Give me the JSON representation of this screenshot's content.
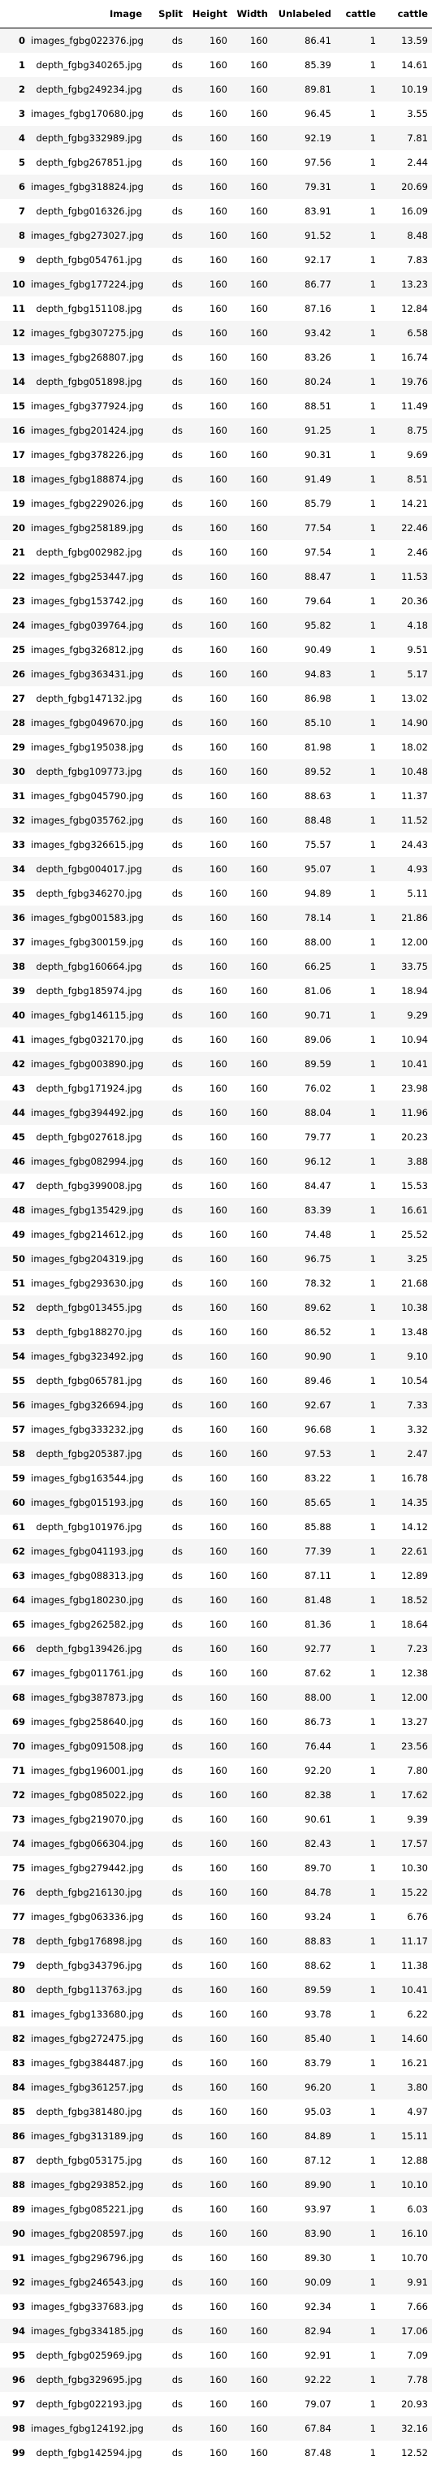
{
  "table": {
    "columns": [
      "",
      "Image",
      "Split",
      "Height",
      "Width",
      "Unlabeled",
      "cattle",
      "cattle"
    ],
    "rows": [
      [
        "0",
        "images_fgbg022376.jpg",
        "ds",
        "160",
        "160",
        "86.41",
        "1",
        "13.59"
      ],
      [
        "1",
        "depth_fgbg340265.jpg",
        "ds",
        "160",
        "160",
        "85.39",
        "1",
        "14.61"
      ],
      [
        "2",
        "depth_fgbg249234.jpg",
        "ds",
        "160",
        "160",
        "89.81",
        "1",
        "10.19"
      ],
      [
        "3",
        "images_fgbg170680.jpg",
        "ds",
        "160",
        "160",
        "96.45",
        "1",
        "3.55"
      ],
      [
        "4",
        "depth_fgbg332989.jpg",
        "ds",
        "160",
        "160",
        "92.19",
        "1",
        "7.81"
      ],
      [
        "5",
        "depth_fgbg267851.jpg",
        "ds",
        "160",
        "160",
        "97.56",
        "1",
        "2.44"
      ],
      [
        "6",
        "images_fgbg318824.jpg",
        "ds",
        "160",
        "160",
        "79.31",
        "1",
        "20.69"
      ],
      [
        "7",
        "depth_fgbg016326.jpg",
        "ds",
        "160",
        "160",
        "83.91",
        "1",
        "16.09"
      ],
      [
        "8",
        "images_fgbg273027.jpg",
        "ds",
        "160",
        "160",
        "91.52",
        "1",
        "8.48"
      ],
      [
        "9",
        "depth_fgbg054761.jpg",
        "ds",
        "160",
        "160",
        "92.17",
        "1",
        "7.83"
      ],
      [
        "10",
        "images_fgbg177224.jpg",
        "ds",
        "160",
        "160",
        "86.77",
        "1",
        "13.23"
      ],
      [
        "11",
        "depth_fgbg151108.jpg",
        "ds",
        "160",
        "160",
        "87.16",
        "1",
        "12.84"
      ],
      [
        "12",
        "images_fgbg307275.jpg",
        "ds",
        "160",
        "160",
        "93.42",
        "1",
        "6.58"
      ],
      [
        "13",
        "images_fgbg268807.jpg",
        "ds",
        "160",
        "160",
        "83.26",
        "1",
        "16.74"
      ],
      [
        "14",
        "depth_fgbg051898.jpg",
        "ds",
        "160",
        "160",
        "80.24",
        "1",
        "19.76"
      ],
      [
        "15",
        "images_fgbg377924.jpg",
        "ds",
        "160",
        "160",
        "88.51",
        "1",
        "11.49"
      ],
      [
        "16",
        "images_fgbg201424.jpg",
        "ds",
        "160",
        "160",
        "91.25",
        "1",
        "8.75"
      ],
      [
        "17",
        "images_fgbg378226.jpg",
        "ds",
        "160",
        "160",
        "90.31",
        "1",
        "9.69"
      ],
      [
        "18",
        "images_fgbg188874.jpg",
        "ds",
        "160",
        "160",
        "91.49",
        "1",
        "8.51"
      ],
      [
        "19",
        "images_fgbg229026.jpg",
        "ds",
        "160",
        "160",
        "85.79",
        "1",
        "14.21"
      ],
      [
        "20",
        "images_fgbg258189.jpg",
        "ds",
        "160",
        "160",
        "77.54",
        "1",
        "22.46"
      ],
      [
        "21",
        "depth_fgbg002982.jpg",
        "ds",
        "160",
        "160",
        "97.54",
        "1",
        "2.46"
      ],
      [
        "22",
        "images_fgbg253447.jpg",
        "ds",
        "160",
        "160",
        "88.47",
        "1",
        "11.53"
      ],
      [
        "23",
        "images_fgbg153742.jpg",
        "ds",
        "160",
        "160",
        "79.64",
        "1",
        "20.36"
      ],
      [
        "24",
        "images_fgbg039764.jpg",
        "ds",
        "160",
        "160",
        "95.82",
        "1",
        "4.18"
      ],
      [
        "25",
        "images_fgbg326812.jpg",
        "ds",
        "160",
        "160",
        "90.49",
        "1",
        "9.51"
      ],
      [
        "26",
        "images_fgbg363431.jpg",
        "ds",
        "160",
        "160",
        "94.83",
        "1",
        "5.17"
      ],
      [
        "27",
        "depth_fgbg147132.jpg",
        "ds",
        "160",
        "160",
        "86.98",
        "1",
        "13.02"
      ],
      [
        "28",
        "images_fgbg049670.jpg",
        "ds",
        "160",
        "160",
        "85.10",
        "1",
        "14.90"
      ],
      [
        "29",
        "images_fgbg195038.jpg",
        "ds",
        "160",
        "160",
        "81.98",
        "1",
        "18.02"
      ],
      [
        "30",
        "depth_fgbg109773.jpg",
        "ds",
        "160",
        "160",
        "89.52",
        "1",
        "10.48"
      ],
      [
        "31",
        "images_fgbg045790.jpg",
        "ds",
        "160",
        "160",
        "88.63",
        "1",
        "11.37"
      ],
      [
        "32",
        "images_fgbg035762.jpg",
        "ds",
        "160",
        "160",
        "88.48",
        "1",
        "11.52"
      ],
      [
        "33",
        "images_fgbg326615.jpg",
        "ds",
        "160",
        "160",
        "75.57",
        "1",
        "24.43"
      ],
      [
        "34",
        "depth_fgbg004017.jpg",
        "ds",
        "160",
        "160",
        "95.07",
        "1",
        "4.93"
      ],
      [
        "35",
        "depth_fgbg346270.jpg",
        "ds",
        "160",
        "160",
        "94.89",
        "1",
        "5.11"
      ],
      [
        "36",
        "images_fgbg001583.jpg",
        "ds",
        "160",
        "160",
        "78.14",
        "1",
        "21.86"
      ],
      [
        "37",
        "images_fgbg300159.jpg",
        "ds",
        "160",
        "160",
        "88.00",
        "1",
        "12.00"
      ],
      [
        "38",
        "depth_fgbg160664.jpg",
        "ds",
        "160",
        "160",
        "66.25",
        "1",
        "33.75"
      ],
      [
        "39",
        "depth_fgbg185974.jpg",
        "ds",
        "160",
        "160",
        "81.06",
        "1",
        "18.94"
      ],
      [
        "40",
        "images_fgbg146115.jpg",
        "ds",
        "160",
        "160",
        "90.71",
        "1",
        "9.29"
      ],
      [
        "41",
        "images_fgbg032170.jpg",
        "ds",
        "160",
        "160",
        "89.06",
        "1",
        "10.94"
      ],
      [
        "42",
        "images_fgbg003890.jpg",
        "ds",
        "160",
        "160",
        "89.59",
        "1",
        "10.41"
      ],
      [
        "43",
        "depth_fgbg171924.jpg",
        "ds",
        "160",
        "160",
        "76.02",
        "1",
        "23.98"
      ],
      [
        "44",
        "images_fgbg394492.jpg",
        "ds",
        "160",
        "160",
        "88.04",
        "1",
        "11.96"
      ],
      [
        "45",
        "depth_fgbg027618.jpg",
        "ds",
        "160",
        "160",
        "79.77",
        "1",
        "20.23"
      ],
      [
        "46",
        "images_fgbg082994.jpg",
        "ds",
        "160",
        "160",
        "96.12",
        "1",
        "3.88"
      ],
      [
        "47",
        "depth_fgbg399008.jpg",
        "ds",
        "160",
        "160",
        "84.47",
        "1",
        "15.53"
      ],
      [
        "48",
        "images_fgbg135429.jpg",
        "ds",
        "160",
        "160",
        "83.39",
        "1",
        "16.61"
      ],
      [
        "49",
        "images_fgbg214612.jpg",
        "ds",
        "160",
        "160",
        "74.48",
        "1",
        "25.52"
      ],
      [
        "50",
        "images_fgbg204319.jpg",
        "ds",
        "160",
        "160",
        "96.75",
        "1",
        "3.25"
      ],
      [
        "51",
        "images_fgbg293630.jpg",
        "ds",
        "160",
        "160",
        "78.32",
        "1",
        "21.68"
      ],
      [
        "52",
        "depth_fgbg013455.jpg",
        "ds",
        "160",
        "160",
        "89.62",
        "1",
        "10.38"
      ],
      [
        "53",
        "depth_fgbg188270.jpg",
        "ds",
        "160",
        "160",
        "86.52",
        "1",
        "13.48"
      ],
      [
        "54",
        "images_fgbg323492.jpg",
        "ds",
        "160",
        "160",
        "90.90",
        "1",
        "9.10"
      ],
      [
        "55",
        "depth_fgbg065781.jpg",
        "ds",
        "160",
        "160",
        "89.46",
        "1",
        "10.54"
      ],
      [
        "56",
        "images_fgbg326694.jpg",
        "ds",
        "160",
        "160",
        "92.67",
        "1",
        "7.33"
      ],
      [
        "57",
        "images_fgbg333232.jpg",
        "ds",
        "160",
        "160",
        "96.68",
        "1",
        "3.32"
      ],
      [
        "58",
        "depth_fgbg205387.jpg",
        "ds",
        "160",
        "160",
        "97.53",
        "1",
        "2.47"
      ],
      [
        "59",
        "images_fgbg163544.jpg",
        "ds",
        "160",
        "160",
        "83.22",
        "1",
        "16.78"
      ],
      [
        "60",
        "images_fgbg015193.jpg",
        "ds",
        "160",
        "160",
        "85.65",
        "1",
        "14.35"
      ],
      [
        "61",
        "depth_fgbg101976.jpg",
        "ds",
        "160",
        "160",
        "85.88",
        "1",
        "14.12"
      ],
      [
        "62",
        "images_fgbg041193.jpg",
        "ds",
        "160",
        "160",
        "77.39",
        "1",
        "22.61"
      ],
      [
        "63",
        "images_fgbg088313.jpg",
        "ds",
        "160",
        "160",
        "87.11",
        "1",
        "12.89"
      ],
      [
        "64",
        "images_fgbg180230.jpg",
        "ds",
        "160",
        "160",
        "81.48",
        "1",
        "18.52"
      ],
      [
        "65",
        "images_fgbg262582.jpg",
        "ds",
        "160",
        "160",
        "81.36",
        "1",
        "18.64"
      ],
      [
        "66",
        "depth_fgbg139426.jpg",
        "ds",
        "160",
        "160",
        "92.77",
        "1",
        "7.23"
      ],
      [
        "67",
        "images_fgbg011761.jpg",
        "ds",
        "160",
        "160",
        "87.62",
        "1",
        "12.38"
      ],
      [
        "68",
        "images_fgbg387873.jpg",
        "ds",
        "160",
        "160",
        "88.00",
        "1",
        "12.00"
      ],
      [
        "69",
        "images_fgbg258640.jpg",
        "ds",
        "160",
        "160",
        "86.73",
        "1",
        "13.27"
      ],
      [
        "70",
        "images_fgbg091508.jpg",
        "ds",
        "160",
        "160",
        "76.44",
        "1",
        "23.56"
      ],
      [
        "71",
        "images_fgbg196001.jpg",
        "ds",
        "160",
        "160",
        "92.20",
        "1",
        "7.80"
      ],
      [
        "72",
        "images_fgbg085022.jpg",
        "ds",
        "160",
        "160",
        "82.38",
        "1",
        "17.62"
      ],
      [
        "73",
        "images_fgbg219070.jpg",
        "ds",
        "160",
        "160",
        "90.61",
        "1",
        "9.39"
      ],
      [
        "74",
        "images_fgbg066304.jpg",
        "ds",
        "160",
        "160",
        "82.43",
        "1",
        "17.57"
      ],
      [
        "75",
        "images_fgbg279442.jpg",
        "ds",
        "160",
        "160",
        "89.70",
        "1",
        "10.30"
      ],
      [
        "76",
        "depth_fgbg216130.jpg",
        "ds",
        "160",
        "160",
        "84.78",
        "1",
        "15.22"
      ],
      [
        "77",
        "images_fgbg063336.jpg",
        "ds",
        "160",
        "160",
        "93.24",
        "1",
        "6.76"
      ],
      [
        "78",
        "depth_fgbg176898.jpg",
        "ds",
        "160",
        "160",
        "88.83",
        "1",
        "11.17"
      ],
      [
        "79",
        "depth_fgbg343796.jpg",
        "ds",
        "160",
        "160",
        "88.62",
        "1",
        "11.38"
      ],
      [
        "80",
        "depth_fgbg113763.jpg",
        "ds",
        "160",
        "160",
        "89.59",
        "1",
        "10.41"
      ],
      [
        "81",
        "images_fgbg133680.jpg",
        "ds",
        "160",
        "160",
        "93.78",
        "1",
        "6.22"
      ],
      [
        "82",
        "images_fgbg272475.jpg",
        "ds",
        "160",
        "160",
        "85.40",
        "1",
        "14.60"
      ],
      [
        "83",
        "images_fgbg384487.jpg",
        "ds",
        "160",
        "160",
        "83.79",
        "1",
        "16.21"
      ],
      [
        "84",
        "images_fgbg361257.jpg",
        "ds",
        "160",
        "160",
        "96.20",
        "1",
        "3.80"
      ],
      [
        "85",
        "depth_fgbg381480.jpg",
        "ds",
        "160",
        "160",
        "95.03",
        "1",
        "4.97"
      ],
      [
        "86",
        "images_fgbg313189.jpg",
        "ds",
        "160",
        "160",
        "84.89",
        "1",
        "15.11"
      ],
      [
        "87",
        "depth_fgbg053175.jpg",
        "ds",
        "160",
        "160",
        "87.12",
        "1",
        "12.88"
      ],
      [
        "88",
        "images_fgbg293852.jpg",
        "ds",
        "160",
        "160",
        "89.90",
        "1",
        "10.10"
      ],
      [
        "89",
        "images_fgbg085221.jpg",
        "ds",
        "160",
        "160",
        "93.97",
        "1",
        "6.03"
      ],
      [
        "90",
        "images_fgbg208597.jpg",
        "ds",
        "160",
        "160",
        "83.90",
        "1",
        "16.10"
      ],
      [
        "91",
        "images_fgbg296796.jpg",
        "ds",
        "160",
        "160",
        "89.30",
        "1",
        "10.70"
      ],
      [
        "92",
        "images_fgbg246543.jpg",
        "ds",
        "160",
        "160",
        "90.09",
        "1",
        "9.91"
      ],
      [
        "93",
        "images_fgbg337683.jpg",
        "ds",
        "160",
        "160",
        "92.34",
        "1",
        "7.66"
      ],
      [
        "94",
        "images_fgbg334185.jpg",
        "ds",
        "160",
        "160",
        "82.94",
        "1",
        "17.06"
      ],
      [
        "95",
        "depth_fgbg025969.jpg",
        "ds",
        "160",
        "160",
        "92.91",
        "1",
        "7.09"
      ],
      [
        "96",
        "depth_fgbg329695.jpg",
        "ds",
        "160",
        "160",
        "92.22",
        "1",
        "7.78"
      ],
      [
        "97",
        "depth_fgbg022193.jpg",
        "ds",
        "160",
        "160",
        "79.07",
        "1",
        "20.93"
      ],
      [
        "98",
        "images_fgbg124192.jpg",
        "ds",
        "160",
        "160",
        "67.84",
        "1",
        "32.16"
      ],
      [
        "99",
        "depth_fgbg142594.jpg",
        "ds",
        "160",
        "160",
        "87.48",
        "1",
        "12.52"
      ]
    ]
  }
}
